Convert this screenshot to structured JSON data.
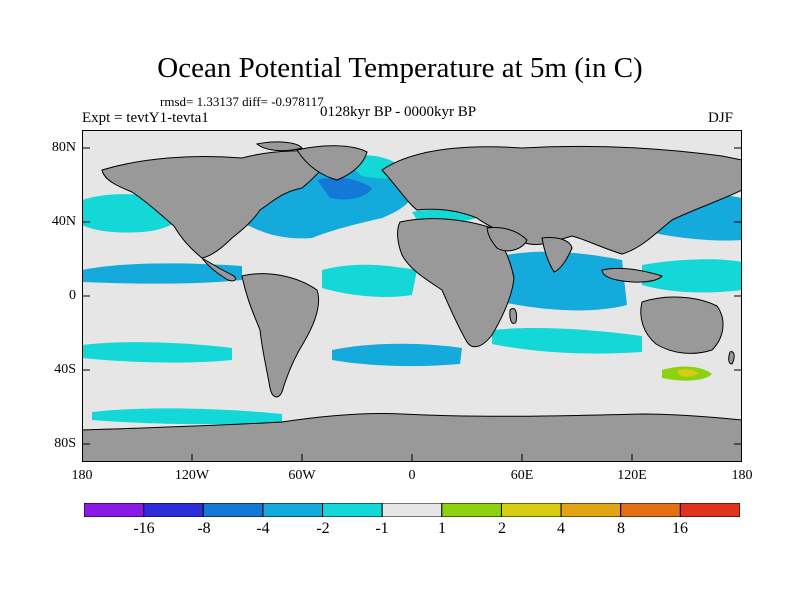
{
  "title": "Ocean Potential Temperature at 5m (in C)",
  "stats": "rmsd= 1.33137 diff= -0.978117",
  "left_label": "Expt = tevtY1-tevta1",
  "center_label": "0128kyr BP - 0000kyr BP",
  "right_label": "DJF",
  "lat_ticks": [
    "80N",
    "40N",
    "0",
    "40S",
    "80S"
  ],
  "lon_ticks": [
    "180",
    "120W",
    "60W",
    "0",
    "60E",
    "120E",
    "180"
  ],
  "colorbar": {
    "labels": [
      "-16",
      "-8",
      "-4",
      "-2",
      "-1",
      "1",
      "2",
      "4",
      "8",
      "16"
    ],
    "colors": [
      "#8a19e6",
      "#2d2ddc",
      "#1478d7",
      "#14aadc",
      "#14d7d7",
      "#e6e6e6",
      "#8cd20f",
      "#d7cd14",
      "#e1a514",
      "#e66e14",
      "#e1321e"
    ]
  },
  "colors": {
    "land": "#999999",
    "no_change": "#e6e6e6",
    "cool_1": "#14d7d7",
    "cool_2": "#14aadc",
    "cool_4": "#1478d7",
    "warm_1": "#8cd20f",
    "warm_2": "#d7cd14"
  }
}
